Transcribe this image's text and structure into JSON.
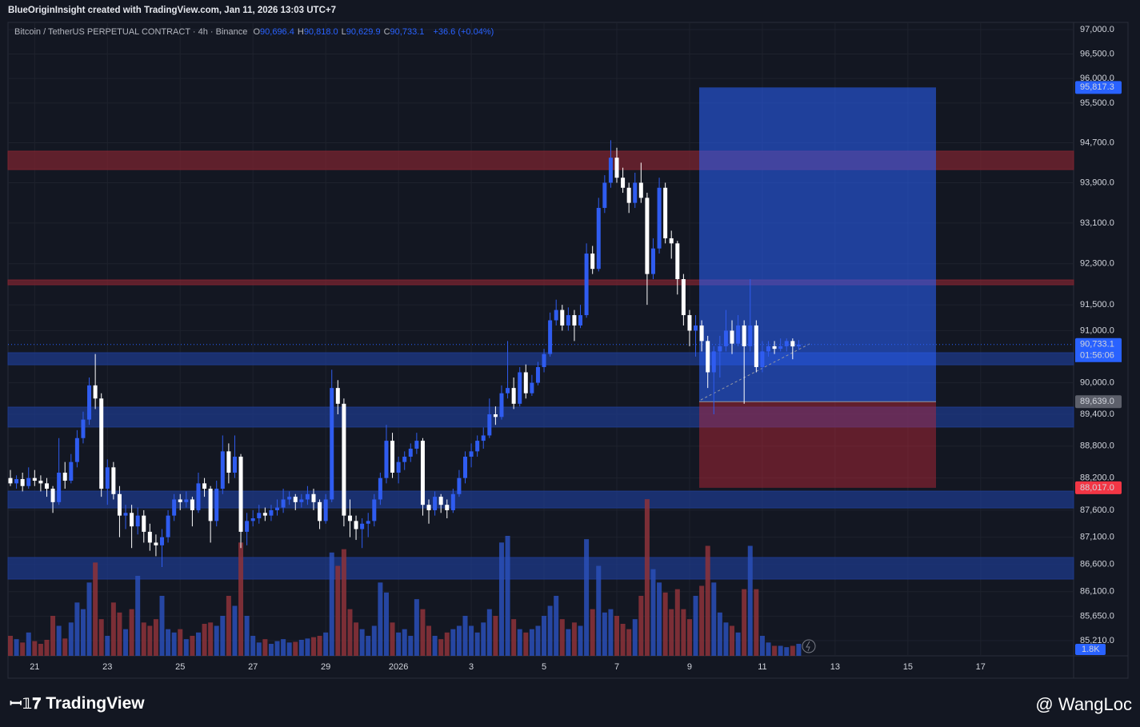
{
  "header": {
    "title": "BlueOriginInsight created with TradingView.com, Jan 11, 2026 13:03 UTC+7"
  },
  "legend": {
    "symbol": "Bitcoin / TetherUS PERPETUAL CONTRACT · 4h · Binance",
    "items": [
      {
        "key": "O",
        "value": "90,696.4"
      },
      {
        "key": "H",
        "value": "90,818.0"
      },
      {
        "key": "L",
        "value": "90,629.9"
      },
      {
        "key": "C",
        "value": "90,733.1"
      }
    ],
    "change": "+36.6 (+0.04%)"
  },
  "footer": {
    "brand": "TradingView",
    "watermark": "@ WangLoc"
  },
  "chart_data": {
    "type": "candlestick",
    "log_scale": true,
    "grid": true,
    "up_color": "#2f5cf0",
    "down_color": "#ffffff",
    "volume_up_color": "#2a4fb8",
    "volume_down_color": "#8e3239",
    "ylim": [
      84936,
      97148
    ],
    "yticks": [
      {
        "value": 97000,
        "label": "97,000.0"
      },
      {
        "value": 96500,
        "label": "96,500.0"
      },
      {
        "value": 96000,
        "label": "96,000.0"
      },
      {
        "value": 95500,
        "label": "95,500.0"
      },
      {
        "value": 94700,
        "label": "94,700.0"
      },
      {
        "value": 93900,
        "label": "93,900.0"
      },
      {
        "value": 93100,
        "label": "93,100.0"
      },
      {
        "value": 92300,
        "label": "92,300.0"
      },
      {
        "value": 91500,
        "label": "91,500.0"
      },
      {
        "value": 91000,
        "label": "91,000.0"
      },
      {
        "value": 90000,
        "label": "90,000.0"
      },
      {
        "value": 89400,
        "label": "89,400.0"
      },
      {
        "value": 88800,
        "label": "88,800.0"
      },
      {
        "value": 88200,
        "label": "88,200.0"
      },
      {
        "value": 87600,
        "label": "87,600.0"
      },
      {
        "value": 87100,
        "label": "87,100.0"
      },
      {
        "value": 86600,
        "label": "86,600.0"
      },
      {
        "value": 86100,
        "label": "86,100.0"
      },
      {
        "value": 85650,
        "label": "85,650.0"
      },
      {
        "value": 85210,
        "label": "85,210.0"
      }
    ],
    "xticks": [
      "21",
      "23",
      "25",
      "27",
      "29",
      "2026",
      "3",
      "5",
      "7",
      "9",
      "11",
      "13",
      "15",
      "17"
    ],
    "zones": [
      {
        "from": 94163,
        "to": 94531,
        "color": "#7a2430"
      },
      {
        "from": 91890,
        "to": 91984,
        "color": "#7a2430"
      },
      {
        "from": 90344,
        "to": 90575,
        "color": "#1e3a8a"
      },
      {
        "from": 89159,
        "to": 89536,
        "color": "#1e3a8a"
      },
      {
        "from": 87642,
        "to": 87955,
        "color": "#1e3a8a"
      },
      {
        "from": 86330,
        "to": 86726,
        "color": "#1e3a8a"
      }
    ],
    "price_labels": [
      {
        "value": 95817.3,
        "label": "95,817.3",
        "color": "#2962ff"
      },
      {
        "value": 89639.0,
        "label": "89,639.0",
        "color": "#5d606b"
      },
      {
        "value": 88017.0,
        "label": "88,017.0",
        "color": "#f23645"
      },
      {
        "value": 90733.1,
        "label": "90,733.1",
        "color": "#2962ff"
      }
    ],
    "countdown": "01:56:06",
    "vlim": [
      0,
      30000
    ],
    "volume_last": {
      "value": 1800,
      "label": "1.8K"
    },
    "ohlc": [
      [
        88200,
        88350,
        88050,
        88100
      ],
      [
        88100,
        88250,
        88000,
        88180
      ],
      [
        88180,
        88300,
        87950,
        88050
      ],
      [
        88050,
        88400,
        88000,
        88200
      ],
      [
        88200,
        88350,
        88050,
        88150
      ],
      [
        88150,
        88250,
        87950,
        88100
      ],
      [
        88100,
        88200,
        87850,
        88000
      ],
      [
        88000,
        88050,
        87550,
        87750
      ],
      [
        87750,
        88950,
        87700,
        88300
      ],
      [
        88300,
        88500,
        88000,
        88150
      ],
      [
        88150,
        88650,
        88100,
        88500
      ],
      [
        88500,
        89100,
        88400,
        88950
      ],
      [
        88950,
        89450,
        88850,
        89300
      ],
      [
        89300,
        90100,
        89200,
        89950
      ],
      [
        89950,
        90550,
        89500,
        89700
      ],
      [
        89700,
        89800,
        87850,
        88000
      ],
      [
        88000,
        88550,
        87700,
        88400
      ],
      [
        88400,
        88500,
        87800,
        87900
      ],
      [
        87900,
        88050,
        87100,
        87500
      ],
      [
        87500,
        87700,
        87250,
        87550
      ],
      [
        87550,
        87700,
        86900,
        87300
      ],
      [
        87300,
        87650,
        87150,
        87500
      ],
      [
        87500,
        87600,
        87000,
        87200
      ],
      [
        87200,
        87350,
        86850,
        87000
      ],
      [
        87000,
        87150,
        86750,
        86950
      ],
      [
        86950,
        87250,
        86550,
        87100
      ],
      [
        87100,
        87600,
        87000,
        87500
      ],
      [
        87500,
        87900,
        87400,
        87800
      ],
      [
        87800,
        87900,
        87600,
        87750
      ],
      [
        87750,
        87950,
        87650,
        87800
      ],
      [
        87800,
        87850,
        87300,
        87600
      ],
      [
        87600,
        88300,
        87550,
        88100
      ],
      [
        88100,
        88200,
        87850,
        88000
      ],
      [
        88000,
        88050,
        87000,
        87400
      ],
      [
        87400,
        88150,
        87300,
        88000
      ],
      [
        88000,
        89000,
        87900,
        88700
      ],
      [
        88700,
        88850,
        88100,
        88300
      ],
      [
        88300,
        89000,
        88200,
        88600
      ],
      [
        88600,
        88650,
        86900,
        87200
      ],
      [
        87200,
        87550,
        86950,
        87400
      ],
      [
        87400,
        87600,
        87300,
        87450
      ],
      [
        87450,
        87700,
        87350,
        87550
      ],
      [
        87550,
        87650,
        87400,
        87500
      ],
      [
        87500,
        87700,
        87400,
        87600
      ],
      [
        87600,
        87800,
        87500,
        87650
      ],
      [
        87650,
        88000,
        87550,
        87800
      ],
      [
        87800,
        87950,
        87700,
        87850
      ],
      [
        87850,
        87900,
        87600,
        87750
      ],
      [
        87750,
        87900,
        87650,
        87800
      ],
      [
        87800,
        88050,
        87700,
        87900
      ],
      [
        87900,
        88000,
        87600,
        87750
      ],
      [
        87750,
        87800,
        87250,
        87400
      ],
      [
        87400,
        87900,
        87350,
        87800
      ],
      [
        87800,
        90250,
        87750,
        89900
      ],
      [
        89900,
        90050,
        89400,
        89600
      ],
      [
        89600,
        89700,
        87300,
        87500
      ],
      [
        87500,
        87800,
        87100,
        87400
      ],
      [
        87400,
        87500,
        87050,
        87250
      ],
      [
        87250,
        87450,
        86900,
        87350
      ],
      [
        87350,
        87550,
        87100,
        87400
      ],
      [
        87400,
        87900,
        87300,
        87800
      ],
      [
        87800,
        88300,
        87700,
        88200
      ],
      [
        88200,
        89200,
        88100,
        88900
      ],
      [
        88900,
        89050,
        88200,
        88300
      ],
      [
        88300,
        88600,
        88100,
        88500
      ],
      [
        88500,
        88700,
        88350,
        88600
      ],
      [
        88600,
        88850,
        88500,
        88750
      ],
      [
        88750,
        89050,
        88650,
        88900
      ],
      [
        88900,
        88950,
        87500,
        87700
      ],
      [
        87700,
        87800,
        87350,
        87600
      ],
      [
        87600,
        87950,
        87500,
        87850
      ],
      [
        87850,
        87900,
        87550,
        87700
      ],
      [
        87700,
        87800,
        87450,
        87600
      ],
      [
        87600,
        88000,
        87550,
        87900
      ],
      [
        87900,
        88350,
        87850,
        88200
      ],
      [
        88200,
        88700,
        88100,
        88600
      ],
      [
        88600,
        88850,
        88400,
        88700
      ],
      [
        88700,
        89000,
        88600,
        88900
      ],
      [
        88900,
        89150,
        88750,
        89000
      ],
      [
        89000,
        89700,
        88950,
        89400
      ],
      [
        89400,
        89550,
        89200,
        89350
      ],
      [
        89350,
        89950,
        89300,
        89800
      ],
      [
        89800,
        90800,
        89700,
        89900
      ],
      [
        89900,
        90100,
        89500,
        89600
      ],
      [
        89600,
        90300,
        89550,
        90200
      ],
      [
        90200,
        90350,
        89700,
        89800
      ],
      [
        89800,
        90150,
        89750,
        90000
      ],
      [
        90000,
        90400,
        89950,
        90300
      ],
      [
        90300,
        90650,
        90200,
        90550
      ],
      [
        90550,
        91350,
        90500,
        91200
      ],
      [
        91200,
        91600,
        91100,
        91400
      ],
      [
        91400,
        91500,
        91000,
        91100
      ],
      [
        91100,
        91450,
        91000,
        91300
      ],
      [
        91300,
        91400,
        90800,
        91100
      ],
      [
        91100,
        91500,
        91050,
        91300
      ],
      [
        91300,
        92700,
        91250,
        92500
      ],
      [
        92500,
        92650,
        92100,
        92200
      ],
      [
        92200,
        93600,
        92150,
        93400
      ],
      [
        93400,
        94050,
        93300,
        93900
      ],
      [
        93900,
        94750,
        93800,
        94400
      ],
      [
        94400,
        94600,
        93900,
        94000
      ],
      [
        94000,
        94200,
        93700,
        93800
      ],
      [
        93800,
        93900,
        93300,
        93500
      ],
      [
        93500,
        94100,
        93400,
        93900
      ],
      [
        93900,
        94300,
        93500,
        93600
      ],
      [
        93600,
        93700,
        91500,
        92100
      ],
      [
        92100,
        92800,
        92000,
        92600
      ],
      [
        92600,
        94000,
        92500,
        93800
      ],
      [
        93800,
        93900,
        92700,
        92800
      ],
      [
        92800,
        92950,
        92400,
        92700
      ],
      [
        92700,
        92750,
        91700,
        92000
      ],
      [
        92000,
        92100,
        91100,
        91300
      ],
      [
        91300,
        91400,
        90700,
        91000
      ],
      [
        91000,
        91300,
        90500,
        91100
      ],
      [
        91100,
        91200,
        90600,
        90800
      ],
      [
        90800,
        90900,
        89900,
        90200
      ],
      [
        90200,
        90700,
        89400,
        90600
      ],
      [
        90600,
        90900,
        90100,
        90700
      ],
      [
        90700,
        91400,
        90600,
        91000
      ],
      [
        91000,
        91200,
        90550,
        90750
      ],
      [
        90750,
        91300,
        90700,
        91100
      ],
      [
        91100,
        91200,
        89600,
        90700
      ],
      [
        90700,
        92000,
        90600,
        91100
      ],
      [
        91100,
        91200,
        90200,
        90300
      ],
      [
        90300,
        90800,
        90200,
        90600
      ],
      [
        90600,
        90800,
        90500,
        90700
      ],
      [
        90700,
        90800,
        90550,
        90650
      ],
      [
        90650,
        90850,
        90600,
        90700
      ],
      [
        90700,
        90850,
        90600,
        90800
      ],
      [
        90800,
        90850,
        90450,
        90696.4
      ],
      [
        90696.4,
        90818.0,
        90629.9,
        90733.1
      ]
    ],
    "volume": [
      3000,
      2500,
      2000,
      3500,
      2200,
      1800,
      2400,
      6000,
      4500,
      2600,
      5000,
      8000,
      7000,
      11000,
      14000,
      5500,
      3000,
      8000,
      6500,
      4000,
      7000,
      12000,
      5000,
      4500,
      5500,
      9000,
      4000,
      3500,
      4000,
      2500,
      3000,
      3500,
      4800,
      5000,
      4500,
      6000,
      9000,
      7500,
      17000,
      6000,
      3000,
      2000,
      2500,
      1800,
      2200,
      2500,
      2000,
      2100,
      2400,
      2600,
      2800,
      3000,
      3500,
      15500,
      13500,
      16000,
      7000,
      5000,
      4000,
      3000,
      4500,
      11000,
      9500,
      5000,
      3500,
      4000,
      3000,
      8500,
      7000,
      4500,
      3000,
      2500,
      3500,
      4000,
      4500,
      6000,
      4500,
      3500,
      5000,
      7000,
      6000,
      17000,
      18000,
      5500,
      4000,
      3500,
      4000,
      4500,
      6000,
      7500,
      9000,
      5500,
      4000,
      5000,
      4500,
      17500,
      7000,
      13500,
      6500,
      7000,
      6000,
      4800,
      4000,
      5500,
      9000,
      23500,
      13000,
      11000,
      9500,
      7000,
      10000,
      7000,
      5500,
      9000,
      10500,
      16500,
      11000,
      6500,
      5000,
      4500,
      3500,
      10000,
      16500,
      10000,
      3000,
      2000,
      1500,
      1500,
      1300,
      1500,
      1800
    ]
  }
}
